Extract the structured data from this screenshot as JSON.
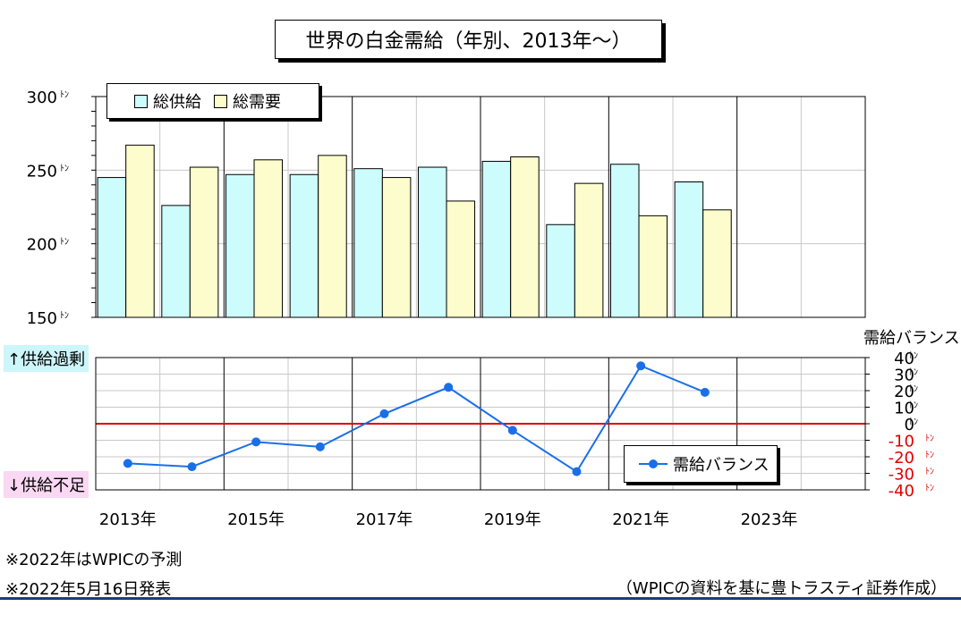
{
  "title": "世界の白金需給（年別、2013年〜）",
  "legend_top": {
    "supply": "総供給",
    "demand": "総需要"
  },
  "legend_bottom": {
    "balance": "需給バランス"
  },
  "balance_axis_title": "需給バランス",
  "side_labels": {
    "surplus": "↑供給過剰",
    "shortage": "↓供給不足"
  },
  "notes": [
    "※2022年はWPICの予測",
    "※2022年5月16日発表"
  ],
  "source": "（WPICの資料を基に豊トラスティ証券作成）",
  "colors": {
    "supply": "#ccfcfc",
    "demand": "#fcfccc",
    "balance_line": "#1a6fe8",
    "zero_line": "#e00000",
    "negative_ticks": "#e00000"
  },
  "chart_data": [
    {
      "type": "bar",
      "categories": [
        "2013",
        "2014",
        "2015",
        "2016",
        "2017",
        "2018",
        "2019",
        "2020",
        "2021",
        "2022",
        "2023",
        "2024"
      ],
      "series": [
        {
          "name": "総供給",
          "values": [
            245,
            226,
            247,
            247,
            251,
            252,
            256,
            213,
            254,
            242,
            null,
            null
          ]
        },
        {
          "name": "総需要",
          "values": [
            267,
            252,
            257,
            260,
            245,
            229,
            259,
            241,
            219,
            223,
            null,
            null
          ]
        }
      ],
      "ylim": [
        150,
        300
      ],
      "yticks": [
        "300",
        "250",
        "200",
        "150"
      ],
      "ytick_unit": "ﾄﾝ",
      "grid": true,
      "legend": "top-left"
    },
    {
      "type": "line",
      "categories": [
        "2013",
        "2014",
        "2015",
        "2016",
        "2017",
        "2018",
        "2019",
        "2020",
        "2021",
        "2022",
        "2023",
        "2024"
      ],
      "xtick_labels": [
        "2013年",
        "2015年",
        "2017年",
        "2019年",
        "2021年",
        "2023年"
      ],
      "series": [
        {
          "name": "需給バランス",
          "values": [
            -24,
            -26,
            -11,
            -14,
            6,
            22,
            -4,
            -29,
            35,
            19,
            null,
            null
          ]
        }
      ],
      "ylim": [
        -40,
        40
      ],
      "yticks": [
        "40",
        "30",
        "20",
        "10",
        "0",
        "-10",
        "-20",
        "-30",
        "-40"
      ],
      "ytick_unit": "ﾄﾝ",
      "grid": true,
      "legend": "bottom-right"
    }
  ]
}
